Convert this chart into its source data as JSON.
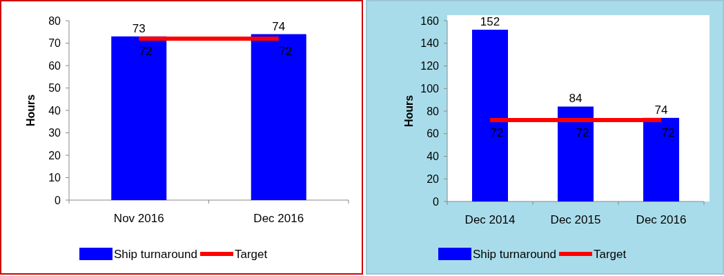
{
  "chart_data": [
    {
      "type": "bar",
      "categories": [
        "Nov 2016",
        "Dec 2016"
      ],
      "series": [
        {
          "name": "Ship turnaround",
          "color": "#0000ff",
          "values": [
            73,
            74
          ]
        },
        {
          "name": "Target",
          "type": "line",
          "color": "#ff0000",
          "values": [
            72,
            72
          ]
        }
      ],
      "ylabel": "Hours",
      "ylim": [
        0,
        80
      ],
      "yticks": [
        0,
        10,
        20,
        30,
        40,
        50,
        60,
        70,
        80
      ],
      "data_labels": true,
      "legend": "bottom",
      "grid": false
    },
    {
      "type": "bar",
      "categories": [
        "Dec 2014",
        "Dec 2015",
        "Dec 2016"
      ],
      "series": [
        {
          "name": "Ship turnaround",
          "color": "#0000ff",
          "values": [
            152,
            84,
            74
          ]
        },
        {
          "name": "Target",
          "type": "line",
          "color": "#ff0000",
          "values": [
            72,
            72,
            72
          ]
        }
      ],
      "ylabel": "Hours",
      "ylim": [
        0,
        160
      ],
      "yticks": [
        0,
        20,
        40,
        60,
        80,
        100,
        120,
        140,
        160
      ],
      "data_labels": true,
      "legend": "bottom",
      "grid": false
    }
  ]
}
